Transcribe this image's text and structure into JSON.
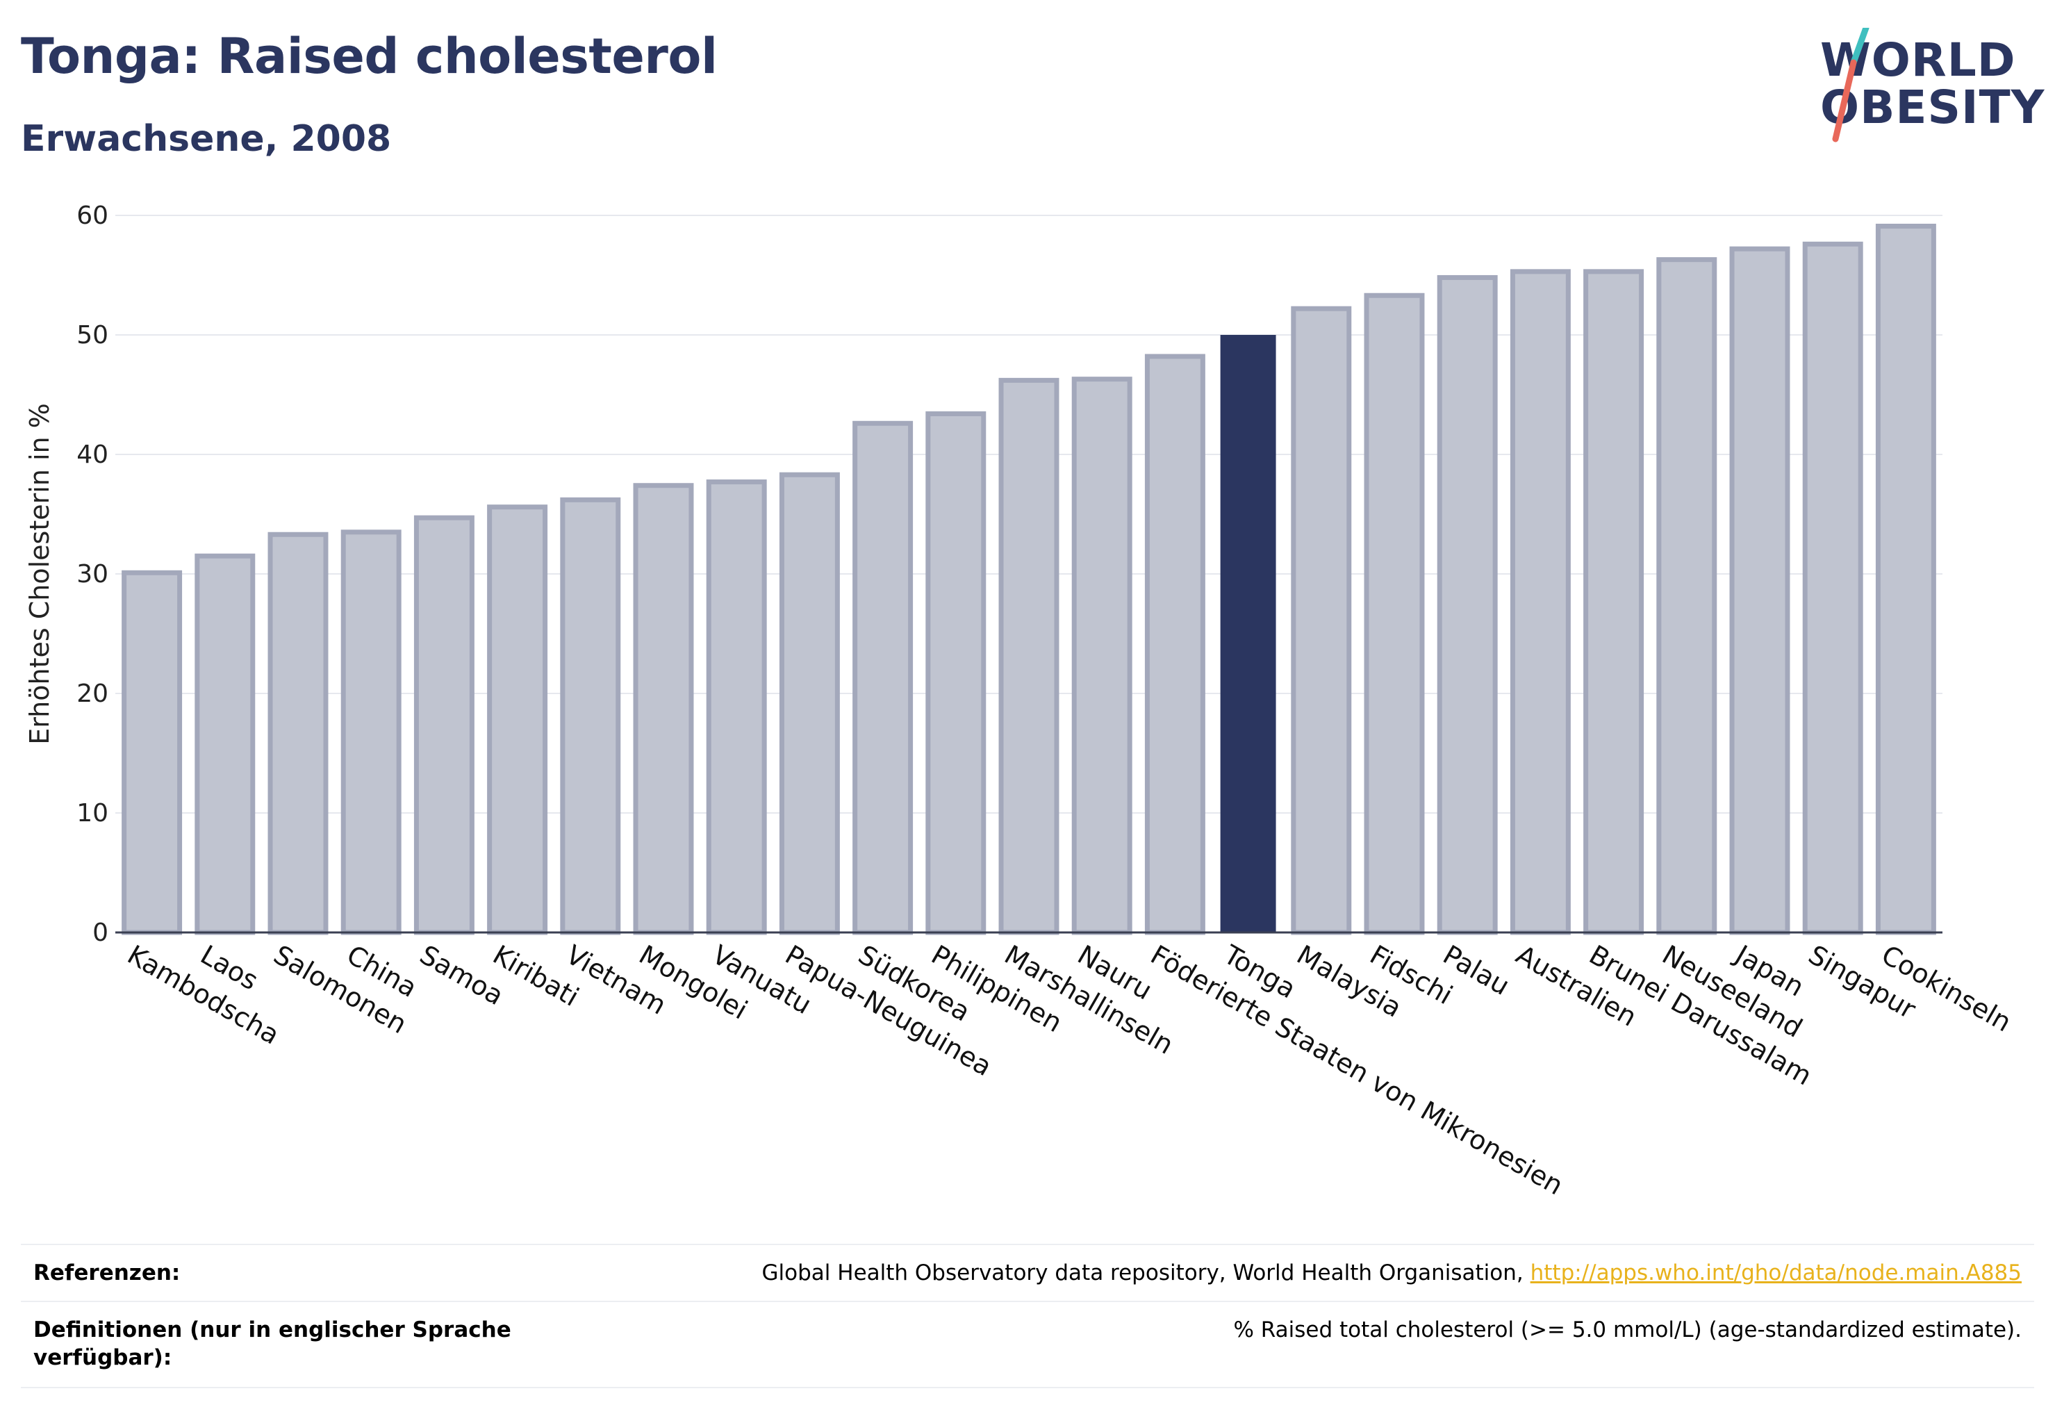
{
  "header": {
    "title": "Tonga: Raised cholesterol",
    "subtitle": "Erwachsene, 2008"
  },
  "logo": {
    "line1": "WORLD",
    "line2": "OBESITY",
    "colors": {
      "text": "#2b3660",
      "slash_top": "#3fbfbf",
      "slash_bottom": "#e8685a"
    }
  },
  "chart_data": {
    "type": "bar",
    "title": "Tonga: Raised cholesterol",
    "subtitle": "Erwachsene, 2008",
    "ylabel": "Erhöhtes Cholesterin in %",
    "xlabel": "",
    "ylim": [
      0,
      60
    ],
    "yticks": [
      0,
      10,
      20,
      30,
      40,
      50,
      60
    ],
    "grid": true,
    "highlight": "Tonga",
    "colors": {
      "bar": "#c0c4d0",
      "bar_border": "#a3a8bb",
      "highlight": "#2b3660"
    },
    "categories": [
      "Kambodscha",
      "Laos",
      "Salomonen",
      "China",
      "Samoa",
      "Kiribati",
      "Vietnam",
      "Mongolei",
      "Vanuatu",
      "Papua-Neuguinea",
      "Südkorea",
      "Philippinen",
      "Marshallinseln",
      "Nauru",
      "Föderierte Staaten von Mikronesien",
      "Tonga",
      "Malaysia",
      "Fidschi",
      "Palau",
      "Australien",
      "Brunei Darussalam",
      "Neuseeland",
      "Japan",
      "Singapur",
      "Cookinseln"
    ],
    "values": [
      30.1,
      31.5,
      33.3,
      33.5,
      34.7,
      35.6,
      36.2,
      37.4,
      37.7,
      38.3,
      42.6,
      43.4,
      46.2,
      46.3,
      48.2,
      50.0,
      52.2,
      53.3,
      54.8,
      55.3,
      55.3,
      56.3,
      57.2,
      57.6,
      59.1
    ]
  },
  "footer": {
    "ref_label": "Referenzen:",
    "ref_text": "Global Health Observatory data repository, World Health Organisation, ",
    "ref_link": "http://apps.who.int/gho/data/node.main.A885",
    "def_label_1": "Definitionen (nur in englischer Sprache",
    "def_label_2": "verfügbar):",
    "def_text": "% Raised total cholesterol (>= 5.0 mmol/L) (age-standardized estimate)."
  }
}
